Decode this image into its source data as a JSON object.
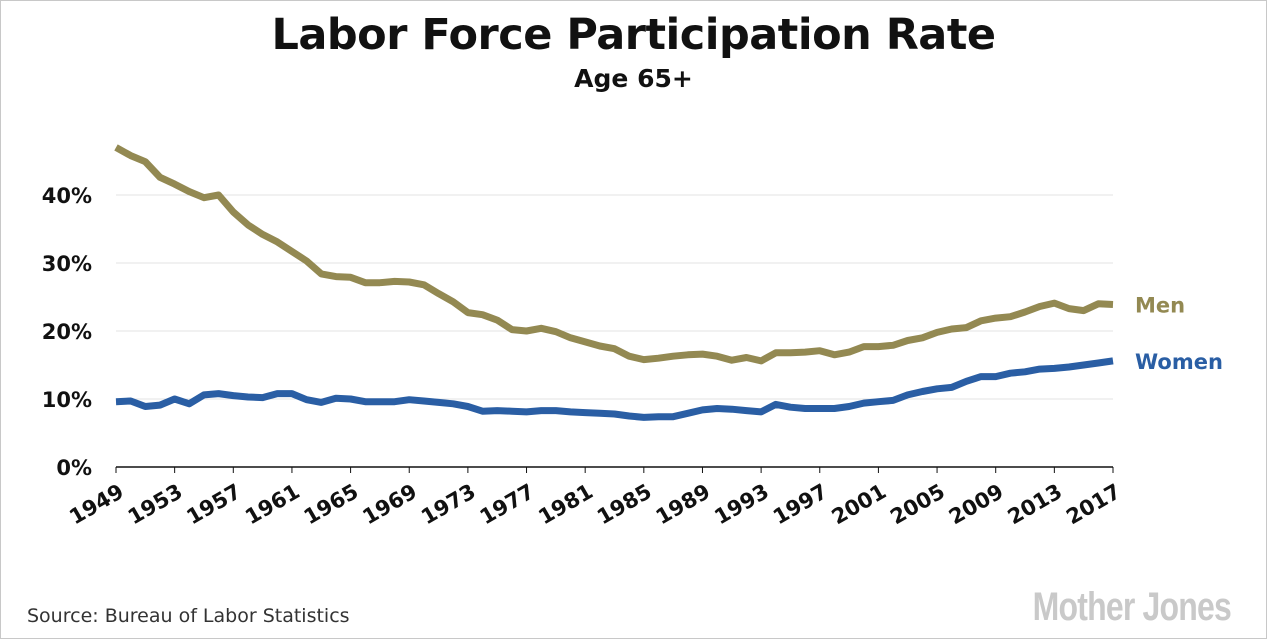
{
  "chart_data": {
    "type": "line",
    "title": "Labor Force Participation Rate",
    "subtitle": "Age 65+",
    "xlabel": "",
    "ylabel": "",
    "ylim": [
      0,
      47
    ],
    "xlim": [
      1949,
      2017
    ],
    "yticks": [
      0,
      10,
      20,
      30,
      40
    ],
    "ytick_labels": [
      "0%",
      "10%",
      "20%",
      "30%",
      "40%"
    ],
    "xtick_labels": [
      "1949",
      "1953",
      "1957",
      "1961",
      "1965",
      "1969",
      "1973",
      "1977",
      "1981",
      "1985",
      "1989",
      "1993",
      "1997",
      "2001",
      "2005",
      "2009",
      "2013",
      "2017"
    ],
    "grid": true,
    "legend": "direct labels at right end",
    "x_start": 1949,
    "series": [
      {
        "name": "Men",
        "color": "#938952",
        "values": [
          47.0,
          45.8,
          44.9,
          42.6,
          41.6,
          40.5,
          39.6,
          40.0,
          37.5,
          35.6,
          34.2,
          33.1,
          31.7,
          30.3,
          28.4,
          28.0,
          27.9,
          27.1,
          27.1,
          27.3,
          27.2,
          26.8,
          25.5,
          24.3,
          22.7,
          22.4,
          21.6,
          20.2,
          20.0,
          20.4,
          19.9,
          19.0,
          18.4,
          17.8,
          17.4,
          16.3,
          15.8,
          16.0,
          16.3,
          16.5,
          16.6,
          16.3,
          15.7,
          16.1,
          15.6,
          16.8,
          16.8,
          16.9,
          17.1,
          16.5,
          16.9,
          17.7,
          17.7,
          17.9,
          18.6,
          19.0,
          19.8,
          20.3,
          20.5,
          21.5,
          21.9,
          22.1,
          22.8,
          23.6,
          24.1,
          23.3,
          23.0,
          24.0,
          23.9
        ]
      },
      {
        "name": "Women",
        "color": "#2a5ea4",
        "values": [
          9.6,
          9.7,
          8.9,
          9.1,
          10.0,
          9.3,
          10.6,
          10.8,
          10.5,
          10.3,
          10.2,
          10.8,
          10.8,
          9.9,
          9.5,
          10.1,
          10.0,
          9.6,
          9.6,
          9.6,
          9.9,
          9.7,
          9.5,
          9.3,
          8.9,
          8.2,
          8.3,
          8.2,
          8.1,
          8.3,
          8.3,
          8.1,
          8.0,
          7.9,
          7.8,
          7.5,
          7.3,
          7.4,
          7.4,
          7.9,
          8.4,
          8.6,
          8.5,
          8.3,
          8.1,
          9.2,
          8.8,
          8.6,
          8.6,
          8.6,
          8.9,
          9.4,
          9.6,
          9.8,
          10.6,
          11.1,
          11.5,
          11.7,
          12.6,
          13.3,
          13.3,
          13.8,
          14.0,
          14.4,
          14.5,
          14.7,
          15.0,
          15.3,
          15.6
        ]
      }
    ]
  },
  "source": "Source: Bureau of Labor Statistics",
  "logo": "Mother Jones"
}
